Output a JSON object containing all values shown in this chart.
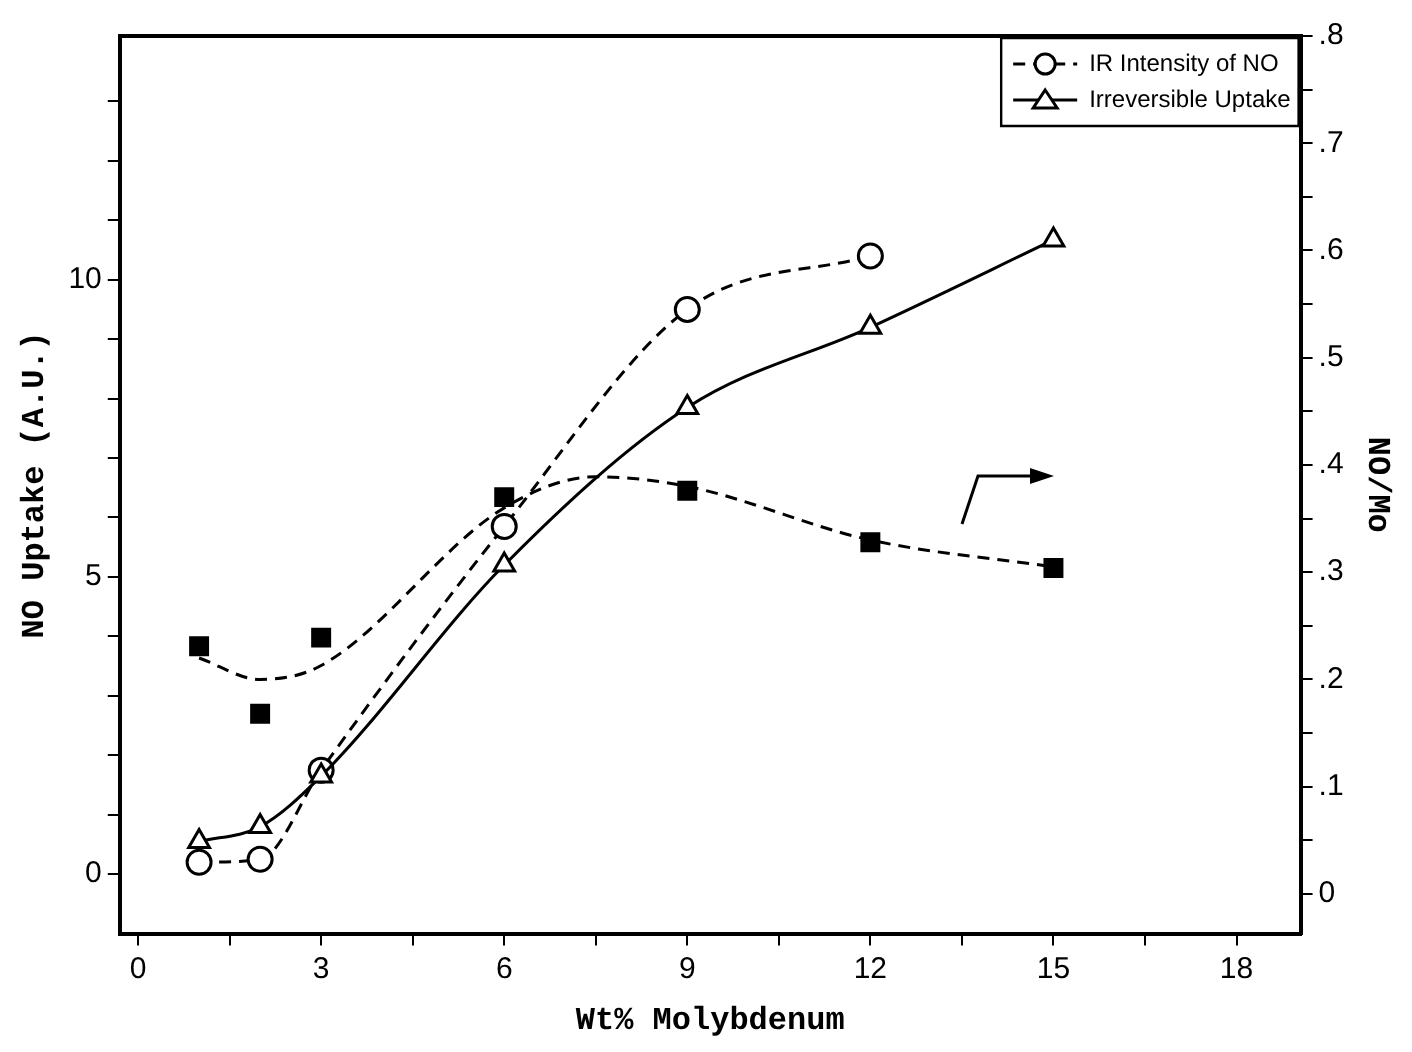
{
  "chart_data": {
    "type": "line",
    "xlabel": "Wt% Molybdenum",
    "ylabel": "NO Uptake (A.U.)",
    "y2label": "NO/Mo",
    "xlim": [
      -0.3,
      19.05
    ],
    "ylim": [
      -1,
      14.1
    ],
    "y2lim": [
      -0.037,
      0.8
    ],
    "xticks": [
      0,
      {
        "value": 1.5,
        "label": null
      },
      3,
      {
        "value": 4.5,
        "label": null
      },
      6,
      {
        "value": 7.5,
        "label": null
      },
      9,
      {
        "value": 10.5,
        "label": null
      },
      12,
      {
        "value": 13.5,
        "label": null
      },
      15,
      {
        "value": 16.5,
        "label": null
      },
      18
    ],
    "yticks": [
      0,
      {
        "value": 1,
        "label": null
      },
      {
        "value": 2,
        "label": null
      },
      {
        "value": 3,
        "label": null
      },
      {
        "value": 4,
        "label": null
      },
      5,
      {
        "value": 6,
        "label": null
      },
      {
        "value": 7,
        "label": null
      },
      {
        "value": 8,
        "label": null
      },
      {
        "value": 9,
        "label": null
      },
      10,
      {
        "value": 11,
        "label": null
      },
      {
        "value": 12,
        "label": null
      },
      {
        "value": 13,
        "label": null
      }
    ],
    "y2ticks": [
      0,
      {
        "value": 0.05,
        "label": null
      },
      {
        "value": 0.1,
        "label": ".1"
      },
      {
        "value": 0.15,
        "label": null
      },
      {
        "value": 0.2,
        "label": ".2"
      },
      {
        "value": 0.25,
        "label": null
      },
      {
        "value": 0.3,
        "label": ".3"
      },
      {
        "value": 0.35,
        "label": null
      },
      {
        "value": 0.4,
        "label": ".4"
      },
      {
        "value": 0.45,
        "label": null
      },
      {
        "value": 0.5,
        "label": ".5"
      },
      {
        "value": 0.55,
        "label": null
      },
      {
        "value": 0.6,
        "label": ".6"
      },
      {
        "value": 0.65,
        "label": null
      },
      {
        "value": 0.7,
        "label": ".7"
      },
      {
        "value": 0.75,
        "label": null
      },
      {
        "value": 0.8,
        "label": ".8"
      }
    ],
    "grid": false,
    "legend": "top right",
    "series": [
      {
        "name": "IR Intensity of NO",
        "color": "#000000",
        "marker": "circle",
        "line_style": "dashed",
        "x": [
          1,
          2,
          3,
          6,
          9,
          12
        ],
        "values": [
          0.2,
          0.25,
          1.75,
          5.85,
          9.5,
          10.4
        ]
      },
      {
        "name": "Irreversible Uptake",
        "color": "#000000",
        "marker": "triangle",
        "line_style": "solid",
        "x": [
          1,
          2,
          3,
          6,
          9,
          12,
          15
        ],
        "values": [
          0.55,
          0.8,
          1.65,
          5.2,
          7.85,
          9.2,
          10.67
        ]
      },
      {
        "color": "#000000",
        "type": "scatter",
        "marker": "square",
        "axis": "y2",
        "x": [
          1,
          2,
          3,
          6,
          9,
          12,
          15
        ],
        "values": [
          0.231,
          0.168,
          0.239,
          0.37,
          0.376,
          0.328,
          0.304
        ]
      },
      {
        "color": "#000000",
        "marker": "none",
        "line_style": "dashed",
        "axis": "y2",
        "x": [
          1,
          2,
          3,
          6,
          7.5,
          9,
          12,
          15
        ],
        "values": [
          0.22,
          0.2,
          0.213,
          0.36,
          0.389,
          0.38,
          0.33,
          0.305
        ]
      }
    ]
  }
}
